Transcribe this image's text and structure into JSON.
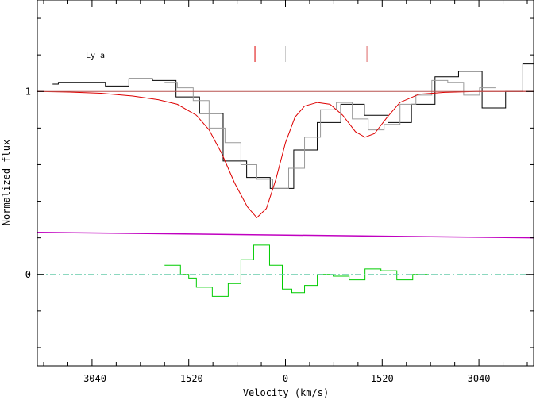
{
  "chart_data": {
    "type": "line",
    "ylabel": "Normalized flux",
    "xlabel": "Velocity (km/s)",
    "ion_label": "Ly_a",
    "xlim": [
      -3900,
      3900
    ],
    "ylim": [
      -0.5,
      1.5
    ],
    "x_ticks": [
      -3040,
      -1520,
      0,
      1520,
      3040
    ],
    "y_ticks": [
      0,
      1
    ],
    "colors": {
      "data": "#000000",
      "data_alt": "#9a9a9a",
      "model": "#dd0000",
      "continuum": "#b85450",
      "error": "#c000c0",
      "residual": "#00cc00",
      "zero_line": "#66ccaa",
      "marker_1": "#dd0000",
      "marker_2": "#cccccc",
      "marker_3": "#dd6666"
    },
    "series": [
      {
        "role": "data",
        "step": true,
        "x": [
          -3660,
          -3570,
          -3200,
          -2830,
          -2460,
          -2090,
          -1720,
          -1350,
          -980,
          -610,
          -240,
          130,
          500,
          870,
          1240,
          1610,
          1980,
          2350,
          2720,
          3090,
          3460,
          3730
        ],
        "y": [
          1.04,
          1.05,
          1.05,
          1.03,
          1.07,
          1.06,
          0.97,
          0.88,
          0.62,
          0.53,
          0.47,
          0.68,
          0.83,
          0.93,
          0.87,
          0.83,
          0.93,
          1.08,
          1.11,
          0.91,
          1.0,
          1.15
        ]
      },
      {
        "role": "data_alt",
        "step": true,
        "x": [
          -1900,
          -1700,
          -1450,
          -1200,
          -950,
          -700,
          -450,
          -200,
          50,
          300,
          550,
          800,
          1050,
          1300,
          1550,
          1800,
          2050,
          2300,
          2550,
          2800,
          3050
        ],
        "y": [
          1.05,
          1.02,
          0.95,
          0.8,
          0.72,
          0.6,
          0.52,
          0.47,
          0.58,
          0.75,
          0.9,
          0.94,
          0.85,
          0.79,
          0.82,
          0.93,
          0.98,
          1.06,
          1.05,
          0.98,
          1.02
        ]
      },
      {
        "role": "model",
        "x": [
          -3900,
          -3400,
          -2900,
          -2400,
          -2000,
          -1700,
          -1400,
          -1200,
          -1000,
          -800,
          -600,
          -450,
          -300,
          -150,
          0,
          150,
          300,
          500,
          700,
          900,
          1100,
          1250,
          1400,
          1600,
          1800,
          2100,
          2500,
          3000,
          3500,
          3900
        ],
        "y": [
          1.0,
          0.997,
          0.99,
          0.975,
          0.955,
          0.93,
          0.87,
          0.79,
          0.66,
          0.5,
          0.37,
          0.31,
          0.36,
          0.52,
          0.72,
          0.86,
          0.92,
          0.94,
          0.93,
          0.87,
          0.78,
          0.75,
          0.77,
          0.86,
          0.94,
          0.985,
          0.995,
          1.0,
          1.0,
          1.0
        ]
      },
      {
        "role": "continuum",
        "x": [
          -3900,
          3900
        ],
        "y": [
          1.0,
          1.0
        ]
      },
      {
        "role": "error",
        "x": [
          -3900,
          3900
        ],
        "y": [
          0.23,
          0.2
        ]
      },
      {
        "role": "residual",
        "step": true,
        "x": [
          -1900,
          -1650,
          -1520,
          -1400,
          -1150,
          -900,
          -700,
          -500,
          -250,
          -50,
          100,
          300,
          500,
          750,
          1000,
          1250,
          1500,
          1750,
          2000
        ],
        "y": [
          0.05,
          0.0,
          -0.02,
          -0.07,
          -0.12,
          -0.05,
          0.08,
          0.16,
          0.05,
          -0.08,
          -0.1,
          -0.06,
          0.0,
          -0.01,
          -0.03,
          0.03,
          0.02,
          -0.03,
          0.0
        ]
      },
      {
        "role": "zero_line",
        "x": [
          -3900,
          3900
        ],
        "y": [
          0,
          0
        ]
      }
    ],
    "markers": [
      {
        "x": -480,
        "role": "marker_1"
      },
      {
        "x": 0,
        "role": "marker_2"
      },
      {
        "x": 1280,
        "role": "marker_3"
      }
    ]
  }
}
